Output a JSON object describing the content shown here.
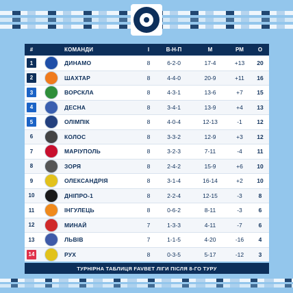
{
  "header": {
    "pos": "#",
    "team": "КОМАНДИ",
    "games": "І",
    "wdl": "В-Н-П",
    "goals": "М",
    "diff": "РМ",
    "points": "О"
  },
  "colors": {
    "navy": "#0d2f5a",
    "blue_badge": "#1b63c6",
    "dark_badge": "#0d2f5a",
    "red_badge": "#e0314b",
    "background": "#93c6ec"
  },
  "rows": [
    {
      "pos": "1",
      "team": "ДИНАМО",
      "games": "8",
      "wdl": "6-2-0",
      "goals": "17-4",
      "diff": "+13",
      "points": "20",
      "badge": "dark",
      "crest_color": "#1f4fa8",
      "crest_icon": "dynamo-crest-icon"
    },
    {
      "pos": "2",
      "team": "ШАХТАР",
      "games": "8",
      "wdl": "4-4-0",
      "goals": "20-9",
      "diff": "+11",
      "points": "16",
      "badge": "dark",
      "crest_color": "#f07b1d",
      "crest_icon": "shakhtar-crest-icon"
    },
    {
      "pos": "3",
      "team": "ВОРСКЛА",
      "games": "8",
      "wdl": "4-3-1",
      "goals": "13-6",
      "diff": "+7",
      "points": "15",
      "badge": "blue",
      "crest_color": "#2f8f3a",
      "crest_icon": "vorskla-crest-icon"
    },
    {
      "pos": "4",
      "team": "ДЕСНА",
      "games": "8",
      "wdl": "3-4-1",
      "goals": "13-9",
      "diff": "+4",
      "points": "13",
      "badge": "blue",
      "crest_color": "#3a5fb0",
      "crest_icon": "desna-crest-icon"
    },
    {
      "pos": "5",
      "team": "ОЛІМПІК",
      "games": "8",
      "wdl": "4-0-4",
      "goals": "12-13",
      "diff": "-1",
      "points": "12",
      "badge": "blue",
      "crest_color": "#23407e",
      "crest_icon": "olimpik-crest-icon"
    },
    {
      "pos": "6",
      "team": "КОЛОС",
      "games": "8",
      "wdl": "3-3-2",
      "goals": "12-9",
      "diff": "+3",
      "points": "12",
      "badge": "white",
      "crest_color": "#444444",
      "crest_icon": "kolos-crest-icon"
    },
    {
      "pos": "7",
      "team": "МАРІУПОЛЬ",
      "games": "8",
      "wdl": "3-2-3",
      "goals": "7-11",
      "diff": "-4",
      "points": "11",
      "badge": "white",
      "crest_color": "#c8102e",
      "crest_icon": "mariupol-crest-icon"
    },
    {
      "pos": "8",
      "team": "ЗОРЯ",
      "games": "8",
      "wdl": "2-4-2",
      "goals": "15-9",
      "diff": "+6",
      "points": "10",
      "badge": "white",
      "crest_color": "#555555",
      "crest_icon": "zorya-crest-icon"
    },
    {
      "pos": "9",
      "team": "ОЛЕКСАНДРІЯ",
      "games": "8",
      "wdl": "3-1-4",
      "goals": "16-14",
      "diff": "+2",
      "points": "10",
      "badge": "white",
      "crest_color": "#e3c21c",
      "crest_icon": "oleksandriya-crest-icon"
    },
    {
      "pos": "10",
      "team": "ДНІПРО-1",
      "games": "8",
      "wdl": "2-2-4",
      "goals": "12-15",
      "diff": "-3",
      "points": "8",
      "badge": "white",
      "crest_color": "#1a1a1a",
      "crest_icon": "dnipro1-crest-icon"
    },
    {
      "pos": "11",
      "team": "ІНГУЛЕЦЬ",
      "games": "8",
      "wdl": "0-6-2",
      "goals": "8-11",
      "diff": "-3",
      "points": "6",
      "badge": "white",
      "crest_color": "#f08a1c",
      "crest_icon": "inhulets-crest-icon"
    },
    {
      "pos": "12",
      "team": "МИНАЙ",
      "games": "7",
      "wdl": "1-3-3",
      "goals": "4-11",
      "diff": "-7",
      "points": "6",
      "badge": "white",
      "crest_color": "#d02a2a",
      "crest_icon": "mynai-crest-icon"
    },
    {
      "pos": "13",
      "team": "ЛЬВІВ",
      "games": "7",
      "wdl": "1-1-5",
      "goals": "4-20",
      "diff": "-16",
      "points": "4",
      "badge": "white",
      "crest_color": "#3e5aa8",
      "crest_icon": "lviv-crest-icon"
    },
    {
      "pos": "14",
      "team": "РУХ",
      "games": "8",
      "wdl": "0-3-5",
      "goals": "5-17",
      "diff": "-12",
      "points": "3",
      "badge": "red",
      "crest_color": "#e1c21b",
      "crest_icon": "rukh-crest-icon"
    }
  ],
  "footer": "ТУРНІРНА ТАБЛИЦЯ FAVBET ЛІГИ ПІСЛЯ 8-ГО ТУРУ"
}
